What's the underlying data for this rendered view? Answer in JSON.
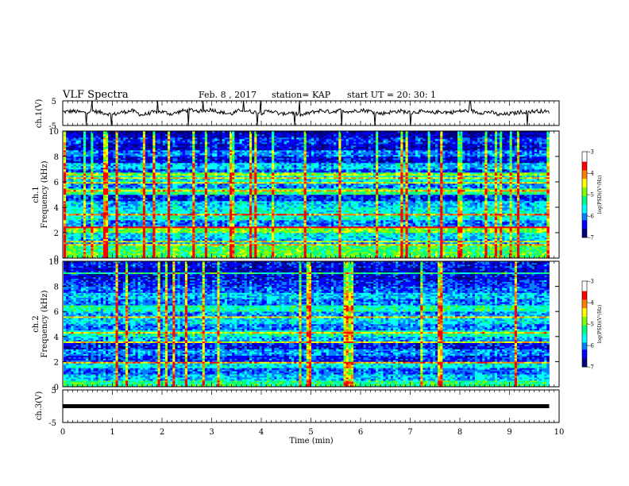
{
  "header": {
    "title": "VLF Spectra",
    "date": "Feb. 8 , 2017",
    "station": "station= KAP",
    "start": "start  UT =   20: 30: 1"
  },
  "colors": {
    "spectrogram_scale": [
      "#000080",
      "#0000ff",
      "#0080ff",
      "#00ffff",
      "#00ff80",
      "#80ff00",
      "#ffff00",
      "#ff8000",
      "#ff0000",
      "#ffffff"
    ],
    "trace": "#000000"
  },
  "chart_data": [
    {
      "type": "line",
      "name": "ch.1 waveform",
      "ylabel": "ch.1(V)",
      "ylim": [
        -5,
        5
      ],
      "yticks": [
        "5",
        "-5"
      ],
      "xlim": [
        0,
        10
      ],
      "x": [
        0,
        0.2,
        0.4,
        0.6,
        0.8,
        1.0,
        1.2,
        1.4,
        1.6,
        1.8,
        2.0,
        2.2,
        2.4,
        2.6,
        2.8,
        3.0,
        3.2,
        3.4,
        3.6,
        3.8,
        4.0,
        4.2,
        4.4,
        4.6,
        4.8,
        5.0,
        5.2,
        5.4,
        5.6,
        5.8,
        6.0,
        6.2,
        6.4,
        6.6,
        6.8,
        7.0,
        7.2,
        7.4,
        7.6,
        7.8,
        8.0,
        8.2,
        8.4,
        8.6,
        8.8,
        9.0,
        9.2,
        9.4,
        9.6,
        9.8
      ],
      "y": [
        0.5,
        0.8,
        0.3,
        0.9,
        0.2,
        -0.6,
        0.4,
        1.0,
        -0.8,
        0.3,
        0.6,
        -0.4,
        0.9,
        1.3,
        0.7,
        1.5,
        0.2,
        -0.3,
        1.4,
        0.6,
        0.1,
        1.0,
        -0.5,
        0.4,
        -0.9,
        0.3,
        1.1,
        0.5,
        1.2,
        0.6,
        1.3,
        0.8,
        -0.2,
        0.4,
        0.9,
        0.2,
        0.7,
        0.1,
        0.6,
        0.3,
        0.8,
        1.0,
        0.2,
        0.5,
        -0.7,
        -0.3,
        0.4,
        0.6,
        0.9,
        0.4
      ]
    },
    {
      "type": "heatmap",
      "name": "ch.1 spectrogram",
      "ylabel": "ch.1\nFrequency  (kHz)",
      "ylim": [
        0,
        10
      ],
      "yticks": [
        "0",
        "2",
        "4",
        "6",
        "8",
        "10"
      ],
      "xlim": [
        0,
        9.8
      ],
      "colorbar": {
        "label": "log(PSD)(V²/Hz)",
        "range": [
          -7,
          -3
        ],
        "ticks": [
          "-3",
          "-4",
          "-5",
          "-6",
          "-7"
        ]
      },
      "band_means": [
        -4.8,
        -4.9,
        -5.8,
        -5.5,
        -4.6,
        -5.9,
        -5.3,
        -5.4,
        -5.6,
        -6.3,
        -5.0,
        -5.9,
        -5.4,
        -6.1,
        -5.6,
        -6.4,
        -5.9,
        -6.5,
        -6.2,
        -6.6
      ]
    },
    {
      "type": "heatmap",
      "name": "ch.2 spectrogram",
      "ylabel": "ch.2\nFrequency  (kHz)",
      "ylim": [
        0,
        10
      ],
      "yticks": [
        "0",
        "2",
        "4",
        "6",
        "8",
        "10"
      ],
      "xlim": [
        0,
        9.8
      ],
      "colorbar": {
        "label": "log(PSD)(V²/Hz)",
        "range": [
          -7,
          -3
        ],
        "ticks": [
          "-3",
          "-4",
          "-5",
          "-6",
          "-7"
        ]
      },
      "band_means": [
        -5.0,
        -5.6,
        -6.0,
        -5.4,
        -6.2,
        -5.8,
        -6.3,
        -5.7,
        -5.2,
        -5.9,
        -5.5,
        -5.8,
        -5.1,
        -5.9,
        -5.6,
        -6.0,
        -6.2,
        -6.4,
        -6.5,
        -6.3
      ]
    },
    {
      "type": "line",
      "name": "ch.3 waveform",
      "ylabel": "ch.3(V)",
      "ylim": [
        -5,
        5
      ],
      "yticks": [
        "5",
        "-5"
      ],
      "xlim": [
        0,
        9.8
      ],
      "x": [
        0,
        9.8
      ],
      "y": [
        0,
        0
      ]
    }
  ],
  "xaxis": {
    "label": "Time  (min)",
    "ticks": [
      "0",
      "1",
      "2",
      "3",
      "4",
      "5",
      "6",
      "7",
      "8",
      "9",
      "10"
    ],
    "range": [
      0,
      10
    ]
  }
}
